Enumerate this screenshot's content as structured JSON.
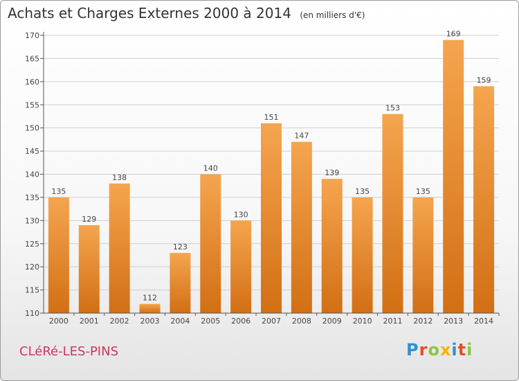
{
  "header": {
    "title": "Achats et Charges Externes 2000 à 2014",
    "unit": "(en milliers d'€)"
  },
  "footer": {
    "place": "CLéRé-LES-PINS",
    "brand": "Proxiti",
    "brand_colors": [
      "#2e8fd6",
      "#e84c25",
      "#8cc63f",
      "#f4b400",
      "#2e8fd6",
      "#e84c25",
      "#8cc63f"
    ]
  },
  "colors": {
    "bar_light": "#f5a54f",
    "bar_dark": "#d26f14",
    "grid": "#cfcfcf",
    "axis": "#555555"
  },
  "chart_data": {
    "type": "bar",
    "title": "Achats et Charges Externes 2000 à 2014",
    "subtitle": "(en milliers d'€)",
    "categories": [
      "2000",
      "2001",
      "2002",
      "2003",
      "2004",
      "2005",
      "2006",
      "2007",
      "2008",
      "2009",
      "2010",
      "2011",
      "2012",
      "2013",
      "2014"
    ],
    "values": [
      135,
      129,
      138,
      112,
      123,
      140,
      130,
      151,
      147,
      139,
      135,
      153,
      135,
      169,
      159
    ],
    "ylim": [
      110,
      170
    ],
    "yticks": [
      110,
      115,
      120,
      125,
      130,
      135,
      140,
      145,
      150,
      155,
      160,
      165,
      170
    ],
    "grid": true,
    "xlabel": "",
    "ylabel": ""
  }
}
